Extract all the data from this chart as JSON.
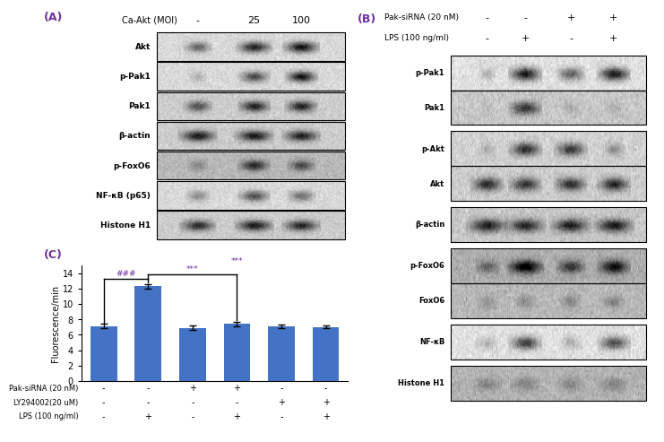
{
  "panel_A_label": "(A)",
  "panel_B_label": "(B)",
  "panel_C_label": "(C)",
  "panel_A_title": "Ca-Akt (MOI)",
  "panel_A_cols": [
    "-",
    "25",
    "100"
  ],
  "panel_A_rows": [
    "Akt",
    "p-Pak1",
    "Pak1",
    "β-actin",
    "p-FoxO6",
    "NF-κB (p65)",
    "Histone H1"
  ],
  "panel_B_row1": "Pak-siRNA (20 nM)",
  "panel_B_row2": "LPS (100 ng/ml)",
  "panel_B_cols": [
    "-",
    "-",
    "+",
    "+"
  ],
  "panel_B_cols2": [
    "-",
    "+",
    "-",
    "+"
  ],
  "panel_B_rows": [
    "p-Pak1",
    "Pak1",
    "p-Akt",
    "Akt",
    "β-actin",
    "p-FoxO6",
    "FoxO6",
    "NF-κB",
    "Histone H1"
  ],
  "bar_values": [
    7.1,
    12.3,
    6.9,
    7.4,
    7.1,
    7.0
  ],
  "bar_errors": [
    0.3,
    0.3,
    0.25,
    0.3,
    0.25,
    0.2
  ],
  "bar_color": "#4472C4",
  "ylabel": "Fluorescence/min",
  "ylim": [
    0,
    15
  ],
  "yticks": [
    0,
    2,
    4,
    6,
    8,
    10,
    12,
    14
  ],
  "table_rows": [
    "Pak-siRNA (20 nM)",
    "LY294002(20 uM)",
    "LPS (100 ng/ml)"
  ],
  "table_data": [
    [
      "-",
      "-",
      "+",
      "+",
      "-",
      "-"
    ],
    [
      "-",
      "-",
      "-",
      "-",
      "+",
      "+"
    ],
    [
      "-",
      "+",
      "-",
      "+",
      "-",
      "+"
    ]
  ],
  "sig_color": "#7030A0",
  "bracket_color": "#000000",
  "label_color": "#7030A0",
  "panel_A_blot_bg": "#b8b8b8",
  "panel_B_blot_bg": "#a0a0a0"
}
